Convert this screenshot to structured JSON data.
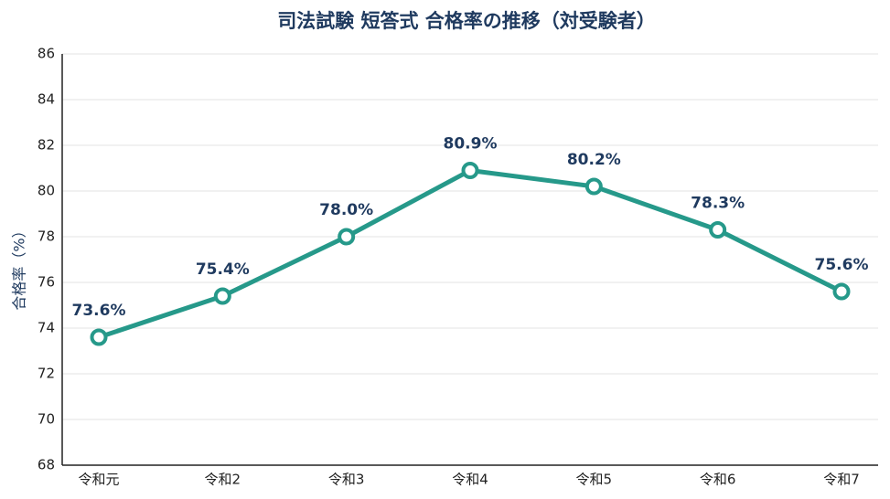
{
  "chart_data": {
    "type": "line",
    "title": "司法試験 短答式 合格率の推移（対受験者）",
    "y_label": "合格率（%）",
    "categories": [
      "令和元",
      "令和2",
      "令和3",
      "令和4",
      "令和5",
      "令和6",
      "令和7"
    ],
    "series": [
      {
        "name": "合格率",
        "color": "#26998a",
        "values": [
          73.6,
          75.4,
          78.0,
          80.9,
          80.2,
          78.3,
          75.6
        ],
        "value_labels": [
          "73.6%",
          "75.4%",
          "78.0%",
          "80.9%",
          "80.2%",
          "78.3%",
          "75.6%"
        ]
      }
    ],
    "ylim": [
      68,
      86
    ],
    "yticks": [
      68,
      70,
      72,
      74,
      76,
      78,
      80,
      82,
      84,
      86
    ],
    "grid": true
  }
}
